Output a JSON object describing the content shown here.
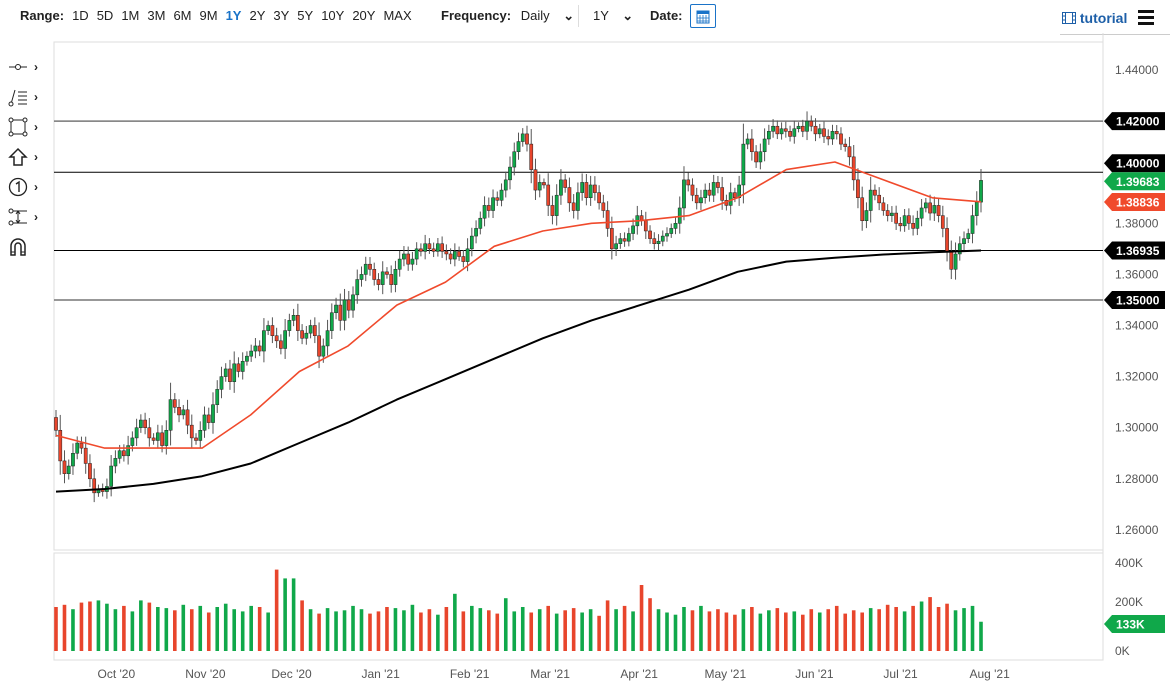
{
  "toolbar": {
    "range_label": "Range:",
    "ranges": [
      "1D",
      "5D",
      "1M",
      "3M",
      "6M",
      "9M",
      "1Y",
      "2Y",
      "3Y",
      "5Y",
      "10Y",
      "20Y",
      "MAX"
    ],
    "active_range": "1Y",
    "frequency_label": "Frequency:",
    "frequency_value": "Daily",
    "period_value": "1Y",
    "date_label": "Date:",
    "tutorial_label": "tutorial",
    "icons": {
      "calendar": "calendar-icon",
      "tutorial": "film-icon",
      "menu": "hamburger-menu-icon"
    }
  },
  "tools": [
    "line-tool",
    "fib-tool",
    "rectangle-tool",
    "arrow-tool",
    "number-marker-tool",
    "channel-tool",
    "magnet-tool"
  ],
  "colors": {
    "up": "#10a84a",
    "down": "#e8452c",
    "ma_fast": "#f04a2c",
    "ma_slow": "#000000",
    "accent": "#1a73c8"
  },
  "chart_data": {
    "type": "candlestick",
    "x_range": [
      "2020-09-10",
      "2021-07-29"
    ],
    "ylim": [
      1.25,
      1.45
    ],
    "y_ticks": [
      "1.44000",
      "1.42000",
      "1.40000",
      "1.38000",
      "1.36000",
      "1.34000",
      "1.32000",
      "1.30000",
      "1.28000",
      "1.26000"
    ],
    "x_ticks": [
      {
        "label": "Oct '20",
        "date": "2020-10-01"
      },
      {
        "label": "Nov '20",
        "date": "2020-11-01"
      },
      {
        "label": "Dec '20",
        "date": "2020-12-01"
      },
      {
        "label": "Jan '21",
        "date": "2021-01-01"
      },
      {
        "label": "Feb '21",
        "date": "2021-02-01"
      },
      {
        "label": "Mar '21",
        "date": "2021-03-01"
      },
      {
        "label": "Apr '21",
        "date": "2021-04-01"
      },
      {
        "label": "May '21",
        "date": "2021-05-01"
      },
      {
        "label": "Jun '21",
        "date": "2021-06-01"
      },
      {
        "label": "Jul '21",
        "date": "2021-07-01"
      },
      {
        "label": "Aug '21",
        "date": "2021-08-01"
      }
    ],
    "first_open": 1.304,
    "closes": [
      1.299,
      1.287,
      1.282,
      1.285,
      1.29,
      1.294,
      1.292,
      1.286,
      1.28,
      1.2745,
      1.276,
      1.275,
      1.277,
      1.285,
      1.288,
      1.291,
      1.289,
      1.293,
      1.296,
      1.3,
      1.303,
      1.3,
      1.296,
      1.295,
      1.298,
      1.293,
      1.299,
      1.311,
      1.308,
      1.305,
      1.307,
      1.301,
      1.296,
      1.295,
      1.299,
      1.305,
      1.302,
      1.309,
      1.315,
      1.32,
      1.323,
      1.318,
      1.325,
      1.322,
      1.326,
      1.328,
      1.33,
      1.332,
      1.33,
      1.338,
      1.34,
      1.336,
      1.334,
      1.331,
      1.338,
      1.342,
      1.344,
      1.338,
      1.335,
      1.337,
      1.34,
      1.336,
      1.328,
      1.332,
      1.338,
      1.345,
      1.348,
      1.342,
      1.35,
      1.346,
      1.352,
      1.358,
      1.36,
      1.364,
      1.362,
      1.358,
      1.356,
      1.361,
      1.36,
      1.356,
      1.362,
      1.366,
      1.368,
      1.364,
      1.366,
      1.37,
      1.369,
      1.372,
      1.37,
      1.369,
      1.372,
      1.369,
      1.368,
      1.366,
      1.369,
      1.367,
      1.365,
      1.37,
      1.375,
      1.378,
      1.382,
      1.387,
      1.385,
      1.39,
      1.389,
      1.393,
      1.397,
      1.402,
      1.408,
      1.412,
      1.415,
      1.411,
      1.401,
      1.393,
      1.396,
      1.395,
      1.387,
      1.383,
      1.391,
      1.397,
      1.394,
      1.388,
      1.385,
      1.392,
      1.396,
      1.39,
      1.395,
      1.392,
      1.388,
      1.385,
      1.378,
      1.37,
      1.372,
      1.374,
      1.373,
      1.376,
      1.379,
      1.383,
      1.381,
      1.377,
      1.374,
      1.372,
      1.373,
      1.375,
      1.376,
      1.378,
      1.38,
      1.386,
      1.397,
      1.395,
      1.391,
      1.388,
      1.39,
      1.393,
      1.391,
      1.396,
      1.394,
      1.389,
      1.387,
      1.392,
      1.39,
      1.395,
      1.411,
      1.413,
      1.408,
      1.404,
      1.408,
      1.413,
      1.416,
      1.418,
      1.415,
      1.417,
      1.416,
      1.414,
      1.417,
      1.418,
      1.416,
      1.42,
      1.418,
      1.415,
      1.417,
      1.414,
      1.413,
      1.416,
      1.415,
      1.411,
      1.41,
      1.406,
      1.397,
      1.39,
      1.381,
      1.385,
      1.393,
      1.391,
      1.388,
      1.385,
      1.383,
      1.384,
      1.38,
      1.379,
      1.383,
      1.38,
      1.378,
      1.382,
      1.386,
      1.388,
      1.384,
      1.387,
      1.383,
      1.378,
      1.369,
      1.362,
      1.368,
      1.372,
      1.374,
      1.376,
      1.383,
      1.3883,
      1.3968
    ],
    "ma_fast": [
      1.297,
      1.292,
      1.292,
      1.292,
      1.305,
      1.322,
      1.332,
      1.348,
      1.357,
      1.371,
      1.377,
      1.38,
      1.381,
      1.383,
      1.39,
      1.401,
      1.404,
      1.397,
      1.39,
      1.3884
    ],
    "ma_slow": [
      1.275,
      1.276,
      1.278,
      1.281,
      1.286,
      1.294,
      1.302,
      1.311,
      1.319,
      1.327,
      1.335,
      1.342,
      1.348,
      1.354,
      1.361,
      1.365,
      1.3665,
      1.3678,
      1.3687,
      1.36935
    ],
    "horizontal_lines": [
      {
        "value": 1.42,
        "label": "1.42000",
        "color": "#777777"
      },
      {
        "value": 1.4,
        "label": "1.40000",
        "color": "#000000"
      },
      {
        "value": 1.36935,
        "label": "1.36935",
        "color": "#000000"
      },
      {
        "value": 1.35,
        "label": "1.35000",
        "color": "#777777"
      }
    ],
    "last_price": {
      "value": 1.39683,
      "label": "1.39683"
    },
    "ma_fast_last": {
      "value": 1.38836,
      "label": "1.38836"
    },
    "volume": {
      "ylim": [
        0,
        400
      ],
      "ticks": [
        "400K",
        "200K",
        "0K"
      ],
      "last_label": "133K",
      "values_k": [
        200,
        210,
        190,
        220,
        225,
        230,
        215,
        190,
        205,
        180,
        230,
        220,
        200,
        195,
        185,
        210,
        190,
        205,
        175,
        200,
        215,
        190,
        180,
        205,
        200,
        175,
        370,
        330,
        330,
        230,
        190,
        170,
        195,
        180,
        185,
        205,
        190,
        170,
        180,
        200,
        195,
        185,
        210,
        175,
        190,
        165,
        200,
        260,
        180,
        205,
        195,
        185,
        170,
        240,
        180,
        200,
        175,
        190,
        205,
        170,
        185,
        195,
        175,
        190,
        160,
        230,
        190,
        205,
        180,
        300,
        240,
        190,
        175,
        165,
        200,
        185,
        205,
        180,
        190,
        175,
        165,
        190,
        200,
        170,
        185,
        195,
        175,
        180,
        165,
        190,
        175,
        190,
        205,
        170,
        185,
        175,
        195,
        190,
        210,
        200,
        180,
        205,
        225,
        245,
        200,
        215,
        185,
        195,
        205,
        133
      ]
    }
  }
}
